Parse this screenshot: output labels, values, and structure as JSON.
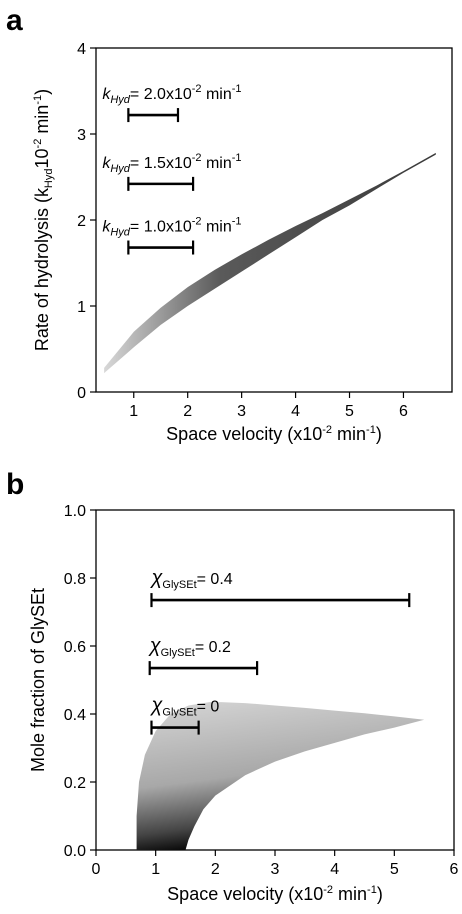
{
  "chart_data": [
    {
      "type": "area",
      "panel_label": "a",
      "xlabel": "Space velocity (x10-2 min-1)",
      "ylabel": "Rate of hydrolysis (kHyd10-2 min-1)",
      "xlim": [
        0.3,
        6.9
      ],
      "ylim": [
        0,
        4
      ],
      "xticks": [
        "1",
        "2",
        "3",
        "4",
        "5",
        "6"
      ],
      "yticks": [
        "0",
        "1",
        "2",
        "3",
        "4"
      ],
      "grid": false,
      "fill": "grayscale gradient (light gray at low space velocity to dark gray/black)",
      "region": {
        "upper": {
          "x": [
            0.45,
            1.0,
            1.5,
            2.0,
            2.5,
            3.0,
            3.5,
            4.0,
            4.5,
            5.0,
            5.5,
            6.0,
            6.6
          ],
          "y": [
            0.28,
            0.7,
            0.98,
            1.22,
            1.42,
            1.6,
            1.77,
            1.93,
            2.08,
            2.24,
            2.4,
            2.57,
            2.78
          ]
        },
        "lower": {
          "x": [
            0.45,
            1.0,
            1.5,
            2.0,
            2.5,
            3.0,
            3.5,
            4.0,
            4.5,
            5.0,
            5.5,
            6.0,
            6.6
          ],
          "y": [
            0.22,
            0.52,
            0.78,
            1.0,
            1.2,
            1.4,
            1.6,
            1.8,
            2.0,
            2.17,
            2.36,
            2.55,
            2.76
          ]
        }
      },
      "annotations": [
        {
          "label": "kHyd",
          "text": "= 2.0x10",
          "exp": "-2",
          "unit": " min",
          "unit_exp": "-1",
          "bar_x": [
            0.9,
            1.82
          ],
          "y": 3.22
        },
        {
          "label": "kHyd",
          "text": "= 1.5x10",
          "exp": "-2",
          "unit": " min",
          "unit_exp": "-1",
          "bar_x": [
            0.9,
            2.1
          ],
          "y": 2.42
        },
        {
          "label": "kHyd",
          "text": "= 1.0x10",
          "exp": "-2",
          "unit": " min",
          "unit_exp": "-1",
          "bar_x": [
            0.9,
            2.1
          ],
          "y": 1.68
        }
      ]
    },
    {
      "type": "area",
      "panel_label": "b",
      "xlabel": "Space velocity (x10-2 min-1)",
      "ylabel": "Mole fraction of GlySEt",
      "xlim": [
        0,
        6
      ],
      "ylim": [
        0,
        1.0
      ],
      "xticks": [
        "0",
        "1",
        "2",
        "3",
        "4",
        "5",
        "6"
      ],
      "yticks": [
        "0.0",
        "0.2",
        "0.4",
        "0.6",
        "0.8",
        "1.0"
      ],
      "grid": false,
      "fill": "grayscale gradient (light gray at top to black near lower boundary)",
      "region": {
        "left_x": [
          0.68,
          0.68,
          0.72,
          0.82,
          1.0,
          1.25,
          1.55,
          1.9,
          2.1
        ],
        "left_y": [
          0.0,
          0.1,
          0.2,
          0.28,
          0.35,
          0.4,
          0.425,
          0.435,
          0.435
        ],
        "upper_x": [
          2.1,
          2.5,
          3.0,
          3.5,
          4.0,
          4.5,
          5.0,
          5.5
        ],
        "upper_y": [
          0.435,
          0.432,
          0.425,
          0.418,
          0.41,
          0.402,
          0.393,
          0.383
        ],
        "lower_x": [
          5.5,
          5.0,
          4.5,
          4.0,
          3.5,
          3.0,
          2.5,
          2.0,
          1.8,
          1.65,
          1.55,
          1.5
        ],
        "lower_y": [
          0.383,
          0.36,
          0.34,
          0.315,
          0.29,
          0.26,
          0.22,
          0.16,
          0.12,
          0.07,
          0.03,
          0.0
        ]
      },
      "annotations": [
        {
          "label": "χ",
          "sub": "GlySEt",
          "text": "= 0.4",
          "bar_x": [
            0.93,
            5.25
          ],
          "y": 0.735
        },
        {
          "label": "χ",
          "sub": "GlySEt",
          "text": "= 0.2",
          "bar_x": [
            0.9,
            2.7
          ],
          "y": 0.535
        },
        {
          "label": "χ",
          "sub": "GlySEt",
          "text": "= 0",
          "bar_x": [
            0.93,
            1.72
          ],
          "y": 0.36
        }
      ]
    }
  ],
  "labels": {
    "a_ylabel_main": "Rate of hydrolysis (k",
    "a_ylabel_sub": "Hyd",
    "a_ylabel_mid": "10",
    "a_ylabel_sup": "-2",
    "a_ylabel_end": " min",
    "a_ylabel_sup2": "-1",
    "a_ylabel_close": ")",
    "x_main": "Space velocity (x10",
    "x_sup": "-2",
    "x_mid": " min",
    "x_sup2": "-1",
    "x_close": ")"
  }
}
